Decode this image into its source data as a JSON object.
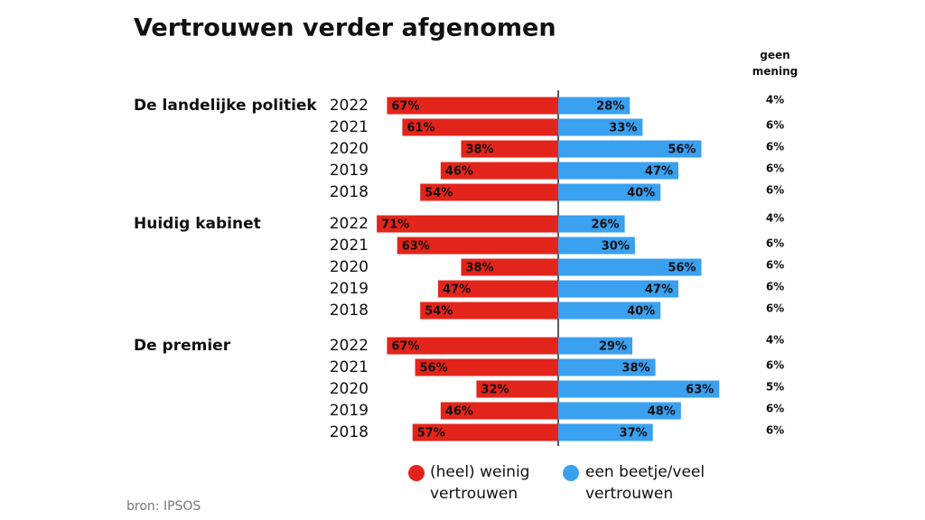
{
  "title": "Vertrouwen verder afgenomen",
  "source": "bron: IPSOS",
  "chart_data": [
    {
      "type": "bar",
      "group": "De landelijke politiek",
      "categories": [
        "2022",
        "2021",
        "2020",
        "2019",
        "2018"
      ],
      "series": [
        {
          "name": "(heel) weinig vertrouwen",
          "color": "#e3241b",
          "values": [
            67,
            61,
            38,
            46,
            54
          ],
          "value_labels": [
            "67%",
            "61%",
            "38%",
            "46%",
            "54%"
          ]
        },
        {
          "name": "een beetje/veel vertrouwen",
          "color": "#3aa0f0",
          "values": [
            28,
            33,
            56,
            47,
            40
          ],
          "value_labels": [
            "28%",
            "33%",
            "56%",
            "47%",
            "40%"
          ]
        },
        {
          "name": "geen mening",
          "values": [
            4,
            6,
            6,
            6,
            6
          ],
          "value_labels": [
            "4%",
            "6%",
            "6%",
            "6%",
            "6%"
          ]
        }
      ]
    },
    {
      "type": "bar",
      "group": "Huidig kabinet",
      "categories": [
        "2022",
        "2021",
        "2020",
        "2019",
        "2018"
      ],
      "series": [
        {
          "name": "(heel) weinig vertrouwen",
          "color": "#e3241b",
          "values": [
            71,
            63,
            38,
            47,
            54
          ],
          "value_labels": [
            "71%",
            "63%",
            "38%",
            "47%",
            "54%"
          ]
        },
        {
          "name": "een beetje/veel vertrouwen",
          "color": "#3aa0f0",
          "values": [
            26,
            30,
            56,
            47,
            40
          ],
          "value_labels": [
            "26%",
            "30%",
            "56%",
            "47%",
            "40%"
          ]
        },
        {
          "name": "geen mening",
          "values": [
            4,
            6,
            6,
            6,
            6
          ],
          "value_labels": [
            "4%",
            "6%",
            "6%",
            "6%",
            "6%"
          ]
        }
      ]
    },
    {
      "type": "bar",
      "group": "De premier",
      "categories": [
        "2022",
        "2021",
        "2020",
        "2019",
        "2018"
      ],
      "series": [
        {
          "name": "(heel) weinig vertrouwen",
          "color": "#e3241b",
          "values": [
            67,
            56,
            32,
            46,
            57
          ],
          "value_labels": [
            "67%",
            "56%",
            "32%",
            "46%",
            "57%"
          ]
        },
        {
          "name": "een beetje/veel vertrouwen",
          "color": "#3aa0f0",
          "values": [
            29,
            38,
            63,
            48,
            37
          ],
          "value_labels": [
            "29%",
            "38%",
            "63%",
            "48%",
            "37%"
          ]
        },
        {
          "name": "geen mening",
          "values": [
            4,
            6,
            5,
            6,
            6
          ],
          "value_labels": [
            "4%",
            "6%",
            "5%",
            "6%",
            "6%"
          ]
        }
      ]
    }
  ]
}
